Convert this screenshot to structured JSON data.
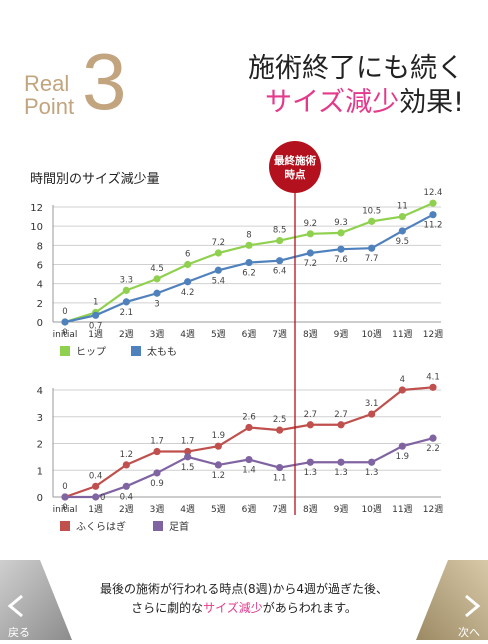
{
  "header": {
    "label_real": "Real",
    "label_point": "Point",
    "number": "3",
    "headline_line1": "施術終了にも続く",
    "headline_pink": "サイズ減少",
    "headline_rest": "効果!"
  },
  "chart_title": "時間別のサイズ減少量",
  "marker_label_line1": "最終施術",
  "marker_label_line2": "時点",
  "colors": {
    "accent_gold": "#c2a47e",
    "pink": "#e33a8c",
    "marker_red": "#b3111d",
    "hip": "#8fd14f",
    "thigh": "#4f81bd",
    "calf": "#c0504d",
    "ankle": "#8064a2"
  },
  "chart_data": [
    {
      "type": "line",
      "categories": [
        "initial",
        "1週",
        "2週",
        "3週",
        "4週",
        "5週",
        "6週",
        "7週",
        "8週",
        "9週",
        "10週",
        "11週",
        "12週"
      ],
      "ylim": [
        0,
        12
      ],
      "yticks": [
        "0",
        "2",
        "4",
        "6",
        "8",
        "10",
        "12"
      ],
      "grid": true,
      "legend": "bottom-left",
      "series": [
        {
          "name": "ヒップ",
          "color": "#8fd14f",
          "values": [
            0,
            1,
            3.3,
            4.5,
            6,
            7.2,
            8,
            8.5,
            9.2,
            9.3,
            10.5,
            11,
            12.4
          ]
        },
        {
          "name": "太もも",
          "color": "#4f81bd",
          "values": [
            0,
            0.7,
            2.1,
            3,
            4.2,
            5.4,
            6.2,
            6.4,
            7.2,
            7.6,
            7.7,
            9.5,
            11.2
          ]
        }
      ]
    },
    {
      "type": "line",
      "categories": [
        "initial",
        "1週",
        "2週",
        "3週",
        "4週",
        "5週",
        "6週",
        "7週",
        "8週",
        "9週",
        "10週",
        "11週",
        "12週"
      ],
      "ylim": [
        0,
        4
      ],
      "yticks": [
        "0",
        "1",
        "2",
        "3",
        "4"
      ],
      "grid": true,
      "legend": "bottom-left",
      "series": [
        {
          "name": "ふくらはぎ",
          "color": "#c0504d",
          "values": [
            0,
            0.4,
            1.2,
            1.7,
            1.7,
            1.9,
            2.6,
            2.5,
            2.7,
            2.7,
            3.1,
            4,
            4.1
          ]
        },
        {
          "name": "足首",
          "color": "#8064a2",
          "values": [
            0,
            0,
            0.4,
            0.9,
            1.5,
            1.2,
            1.4,
            1.1,
            1.3,
            1.3,
            1.3,
            1.9,
            2.2
          ]
        }
      ]
    }
  ],
  "caption": {
    "line1": "最後の施術が行われる時点(8週)から4週が過ぎた後、",
    "line2_pre": "さらに劇的な",
    "line2_pink": "サイズ減少",
    "line2_post": "があらわれます。"
  },
  "nav": {
    "back_label": "戻る",
    "next_label": "次へ",
    "back_icon": "chevron-left-icon",
    "next_icon": "chevron-right-icon"
  }
}
